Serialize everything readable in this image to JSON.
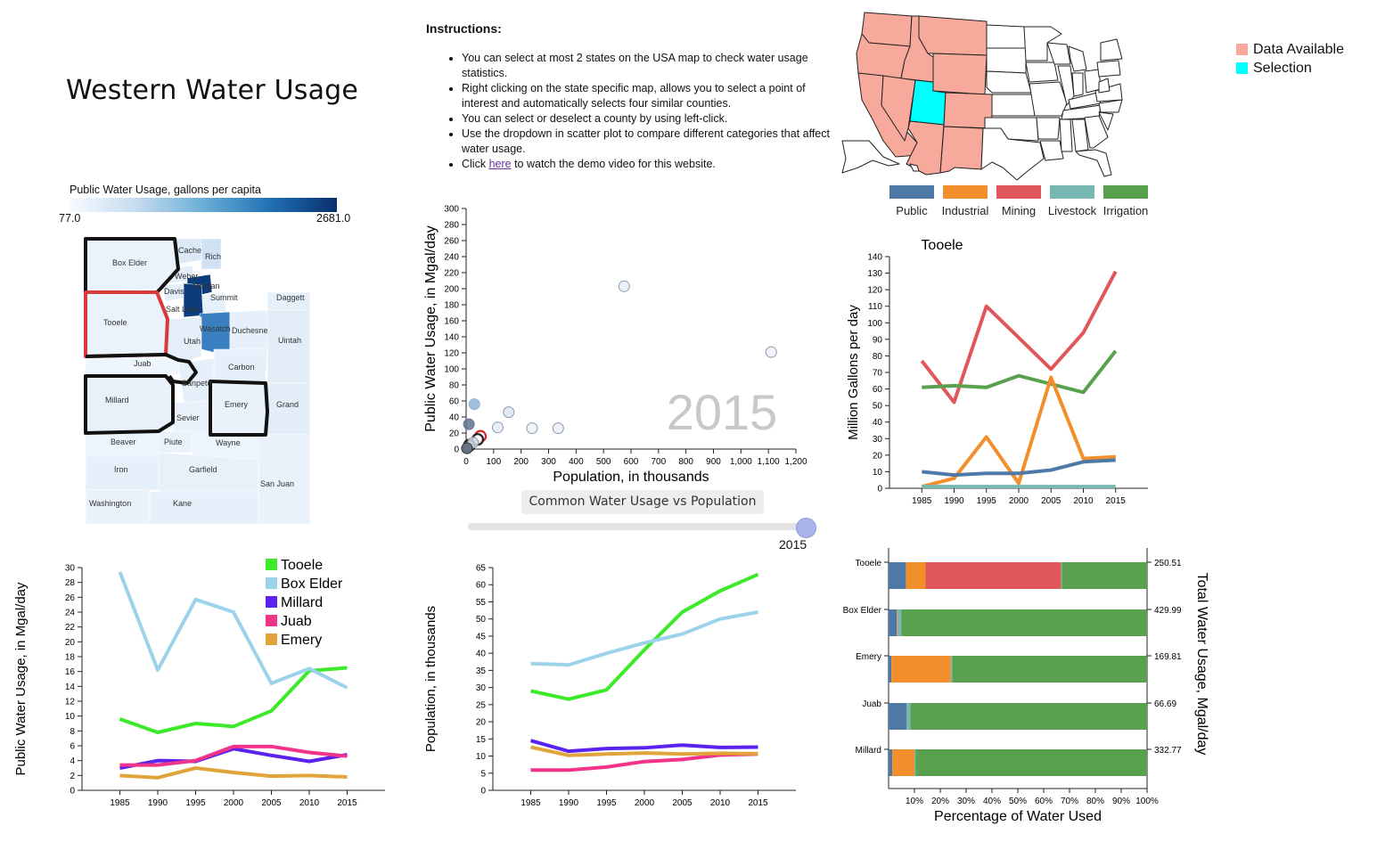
{
  "page": {
    "title": "Western Water Usage"
  },
  "instructions": {
    "heading": "Instructions:",
    "items": [
      "You can select at most 2 states on the USA map to check water usage statistics.",
      "Right clicking on the state specific map, allows you to select a point of interest and automatically selects four similar counties.",
      "You can select or deselect a county by using left-click.",
      "Use the dropdown in scatter plot to compare different categories that affect water usage."
    ],
    "last_prefix": "Click ",
    "last_link": "here",
    "last_suffix": " to watch the demo video for this website."
  },
  "usa_map": {
    "legend": [
      {
        "label": "Data Available",
        "color": "#f7a99c"
      },
      {
        "label": "Selection",
        "color": "#00ffff"
      }
    ]
  },
  "category_legend": [
    {
      "label": "Public",
      "color": "#4e79a7"
    },
    {
      "label": "Industrial",
      "color": "#f28e2b"
    },
    {
      "label": "Mining",
      "color": "#e15759"
    },
    {
      "label": "Livestock",
      "color": "#76b7b2"
    },
    {
      "label": "Irrigation",
      "color": "#59a14f"
    }
  ],
  "county_map": {
    "color_legend_title": "Public Water Usage, gallons per capita",
    "min_label": "77.0",
    "max_label": "2681.0",
    "counties": [
      "Box Elder",
      "Cache",
      "Rich",
      "Weber",
      "Davis",
      "Morgan",
      "Summit",
      "Daggett",
      "Salt Lake",
      "Tooele",
      "Utah",
      "Wasatch",
      "Duchesne",
      "Uintah",
      "Juab",
      "Carbon",
      "Sanpete",
      "Millard",
      "Emery",
      "Grand",
      "Sevier",
      "Beaver",
      "Piute",
      "Wayne",
      "Iron",
      "Garfield",
      "San Juan",
      "Washington",
      "Kane"
    ]
  },
  "controls": {
    "dropdown_label": "Common Water Usage vs Population",
    "dropdown_chevron": "chevron-down-icon",
    "year_value": "2015"
  },
  "chart_data": [
    {
      "id": "scatter",
      "type": "scatter",
      "watermark": "2015",
      "xlabel": "Population, in thousands",
      "ylabel": "Public Water Usage, in Mgal/day",
      "xlim": [
        0,
        1200
      ],
      "ylim": [
        0,
        300
      ],
      "xticks": [
        0,
        100,
        200,
        300,
        400,
        500,
        600,
        700,
        800,
        900,
        1000,
        1100,
        1200
      ],
      "xtick_labels": [
        "0",
        "100",
        "200",
        "300",
        "400",
        "500",
        "600",
        "700",
        "800",
        "900",
        "1,000",
        "1,100",
        "1,200"
      ],
      "yticks": [
        0,
        20,
        40,
        60,
        80,
        100,
        120,
        140,
        160,
        180,
        200,
        220,
        240,
        260,
        280,
        300
      ],
      "points": [
        {
          "x": 575,
          "y": 203,
          "color": "#e8ecf6",
          "stroke": "#8a9ab0",
          "selected": false
        },
        {
          "x": 1110,
          "y": 121,
          "color": "#eef1f7",
          "stroke": "#8a9ab0",
          "selected": false
        },
        {
          "x": 155,
          "y": 46,
          "color": "#dfe6f1",
          "stroke": "#8a9ab0",
          "selected": false
        },
        {
          "x": 240,
          "y": 26,
          "color": "#eef1f7",
          "stroke": "#8a9ab0",
          "selected": false
        },
        {
          "x": 335,
          "y": 26,
          "color": "#eef1f7",
          "stroke": "#8a9ab0",
          "selected": false
        },
        {
          "x": 115,
          "y": 27,
          "color": "#e6ebf4",
          "stroke": "#8a9ab0",
          "selected": false
        },
        {
          "x": 30,
          "y": 56,
          "color": "#8fb3d9",
          "stroke": "#8fb3d9",
          "selected": false
        },
        {
          "x": 10,
          "y": 31,
          "color": "#62748f",
          "stroke": "#62748f",
          "selected": false
        },
        {
          "x": 52,
          "y": 16,
          "color": "#ffffff",
          "stroke": "#d62728",
          "selected": true
        },
        {
          "x": 42,
          "y": 12,
          "color": "#ffffff",
          "stroke": "#222222",
          "selected": true
        },
        {
          "x": 12,
          "y": 5,
          "color": "#ffffff",
          "stroke": "#222222",
          "selected": true
        },
        {
          "x": 11,
          "y": 4,
          "color": "#ffffff",
          "stroke": "#222222",
          "selected": true
        },
        {
          "x": 6,
          "y": 2,
          "color": "#9aa6b8",
          "stroke": "#555555",
          "selected": false
        },
        {
          "x": 25,
          "y": 8,
          "color": "#cfd8e6",
          "stroke": "#8a9ab0",
          "selected": false
        },
        {
          "x": 3,
          "y": 1,
          "color": "#5f6b7c",
          "stroke": "#333333",
          "selected": false
        }
      ]
    },
    {
      "id": "state-line",
      "type": "line",
      "title": "Tooele",
      "ylabel": "Million Gallons per day",
      "xlim": [
        1980,
        2020
      ],
      "ylim": [
        0,
        140
      ],
      "categories": [
        "1985",
        "1990",
        "1995",
        "2000",
        "2005",
        "2010",
        "2015"
      ],
      "yticks": [
        0,
        10,
        20,
        30,
        40,
        50,
        60,
        70,
        80,
        90,
        100,
        110,
        120,
        130,
        140
      ],
      "series": [
        {
          "color": "#e15759",
          "values": [
            77,
            52,
            110,
            91,
            72,
            94,
            131
          ]
        },
        {
          "color": "#59a14f",
          "values": [
            61,
            62,
            61,
            68,
            63,
            58,
            83
          ]
        },
        {
          "color": "#f28e2b",
          "values": [
            1,
            6,
            31,
            3,
            67,
            18,
            19
          ]
        },
        {
          "color": "#4e79a7",
          "values": [
            10,
            8,
            9,
            9,
            11,
            16,
            17
          ]
        },
        {
          "color": "#76b7b2",
          "values": [
            1,
            1,
            1,
            1,
            1,
            1,
            1
          ]
        }
      ]
    },
    {
      "id": "public-line",
      "type": "line",
      "ylabel": "Public Water Usage, in Mgal/day",
      "xlim": [
        1980,
        2020
      ],
      "ylim": [
        0,
        30
      ],
      "categories": [
        "1985",
        "1990",
        "1995",
        "2000",
        "2005",
        "2010",
        "2015"
      ],
      "yticks": [
        0,
        2,
        4,
        6,
        8,
        10,
        12,
        14,
        16,
        18,
        20,
        22,
        24,
        26,
        28,
        30
      ],
      "series": [
        {
          "name": "Tooele",
          "color": "#3dea2a",
          "values": [
            9.6,
            7.8,
            9.0,
            8.6,
            10.7,
            16.1,
            16.5
          ]
        },
        {
          "name": "Box Elder",
          "color": "#9dd3ea",
          "values": [
            29.4,
            16.2,
            25.7,
            24.0,
            14.4,
            16.4,
            13.8
          ]
        },
        {
          "name": "Millard",
          "color": "#5a22ee",
          "values": [
            3.0,
            4.0,
            3.9,
            5.6,
            4.7,
            3.9,
            4.8
          ]
        },
        {
          "name": "Juab",
          "color": "#f2338a",
          "values": [
            3.4,
            3.4,
            4.0,
            5.9,
            5.9,
            5.1,
            4.6
          ]
        },
        {
          "name": "Emery",
          "color": "#e0a43a",
          "values": [
            2.0,
            1.7,
            3.0,
            2.4,
            1.9,
            2.0,
            1.8
          ]
        }
      ]
    },
    {
      "id": "population-line",
      "type": "line",
      "ylabel": "Population, in thousands",
      "xlim": [
        1980,
        2020
      ],
      "ylim": [
        0,
        65
      ],
      "categories": [
        "1985",
        "1990",
        "1995",
        "2000",
        "2005",
        "2010",
        "2015"
      ],
      "yticks": [
        0,
        5,
        10,
        15,
        20,
        25,
        30,
        35,
        40,
        45,
        50,
        55,
        60,
        65
      ],
      "series": [
        {
          "name": "Tooele",
          "color": "#3dea2a",
          "values": [
            29,
            26.6,
            29.3,
            41,
            52,
            58.2,
            63
          ]
        },
        {
          "name": "Box Elder",
          "color": "#9dd3ea",
          "values": [
            37,
            36.6,
            40,
            43,
            45.6,
            50,
            52
          ]
        },
        {
          "name": "Millard",
          "color": "#5a22ee",
          "values": [
            14.5,
            11.4,
            12.2,
            12.4,
            13.2,
            12.5,
            12.6
          ]
        },
        {
          "name": "Juab",
          "color": "#f2338a",
          "values": [
            5.9,
            5.9,
            6.8,
            8.4,
            9.0,
            10.3,
            10.6
          ]
        },
        {
          "name": "Emery",
          "color": "#e0a43a",
          "values": [
            12.6,
            10.2,
            10.6,
            10.9,
            10.6,
            10.8,
            10.7
          ]
        }
      ]
    },
    {
      "id": "stacked-bar",
      "type": "bar",
      "xlabel": "Percentage of Water Used",
      "ylabel": "Total Water Usage, Mgal/day",
      "xlim": [
        0,
        100
      ],
      "xticks": [
        "10%",
        "20%",
        "30%",
        "40%",
        "50%",
        "60%",
        "70%",
        "80%",
        "90%",
        "100%"
      ],
      "categories": [
        "Tooele",
        "Box Elder",
        "Emery",
        "Juab",
        "Millard"
      ],
      "totals": [
        "250.51",
        "429.99",
        "169.81",
        "66.69",
        "332.77"
      ],
      "segment_order": [
        "Public",
        "Industrial",
        "Mining",
        "Livestock",
        "Irrigation"
      ],
      "segment_colors": [
        "#4e79a7",
        "#f28e2b",
        "#e15759",
        "#76b7b2",
        "#59a14f"
      ],
      "rows": [
        [
          6.7,
          7.6,
          52.4,
          0.3,
          33.0
        ],
        [
          3.2,
          0.3,
          0.0,
          1.4,
          95.1
        ],
        [
          1.1,
          23.0,
          0.0,
          0.5,
          75.4
        ],
        [
          6.9,
          0.0,
          0.0,
          1.5,
          91.6
        ],
        [
          1.4,
          8.6,
          0.0,
          0.4,
          89.6
        ]
      ]
    }
  ]
}
